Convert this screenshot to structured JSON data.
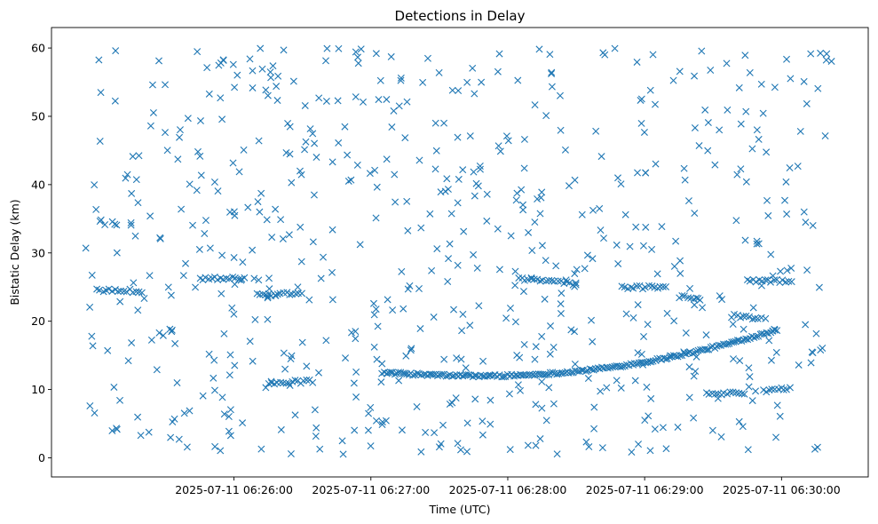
{
  "chart_data": {
    "type": "scatter",
    "title": "Detections in Delay",
    "xlabel": "Time (UTC)",
    "ylabel": "Bistatic Delay (km)",
    "marker": "x",
    "color": "#1f77b4",
    "xlim_seconds_after_06_25_00": [
      -20,
      338
    ],
    "ylim": [
      -2.8,
      63
    ],
    "x_ticks": [
      {
        "seconds": 60,
        "label": "2025-07-11 06:26:00"
      },
      {
        "seconds": 120,
        "label": "2025-07-11 06:27:00"
      },
      {
        "seconds": 180,
        "label": "2025-07-11 06:28:00"
      },
      {
        "seconds": 240,
        "label": "2025-07-11 06:29:00"
      },
      {
        "seconds": 300,
        "label": "2025-07-11 06:30:00"
      }
    ],
    "y_ticks": [
      0,
      10,
      20,
      30,
      40,
      50,
      60
    ],
    "tracks": [
      {
        "name": "main-track",
        "t_range": [
          125,
          298
        ],
        "fit": "12.0 at t≈170, rising to 18.8 at t≈298 (quadratic, minimum ~170)"
      },
      {
        "name": "segment-a",
        "points": [
          [
            0,
            24.6
          ],
          [
            20,
            24.4
          ]
        ]
      },
      {
        "name": "segment-b",
        "points": [
          [
            45,
            26.3
          ],
          [
            65,
            26.2
          ]
        ]
      },
      {
        "name": "segment-c",
        "points": [
          [
            70,
            23.8
          ],
          [
            90,
            24.2
          ]
        ]
      },
      {
        "name": "segment-d",
        "points": [
          [
            75,
            11.0
          ],
          [
            95,
            11.2
          ]
        ]
      },
      {
        "name": "segment-e",
        "points": [
          [
            185,
            26.2
          ],
          [
            210,
            25.5
          ]
        ]
      },
      {
        "name": "segment-f",
        "points": [
          [
            230,
            24.9
          ],
          [
            250,
            25.0
          ]
        ]
      },
      {
        "name": "segment-g",
        "points": [
          [
            255,
            23.6
          ],
          [
            265,
            23.3
          ]
        ]
      },
      {
        "name": "segment-h",
        "points": [
          [
            267,
            9.3
          ],
          [
            285,
            9.5
          ]
        ]
      },
      {
        "name": "segment-i",
        "points": [
          [
            285,
            26.0
          ],
          [
            305,
            25.8
          ]
        ]
      },
      {
        "name": "segment-j",
        "points": [
          [
            278,
            20.8
          ],
          [
            292,
            20.3
          ]
        ]
      },
      {
        "name": "segment-k",
        "points": [
          [
            292,
            9.8
          ],
          [
            305,
            10.2
          ]
        ]
      }
    ],
    "noise": {
      "t_range": [
        -5,
        322
      ],
      "y_range": [
        0.5,
        60
      ],
      "count": 650,
      "seed": 12345
    }
  }
}
